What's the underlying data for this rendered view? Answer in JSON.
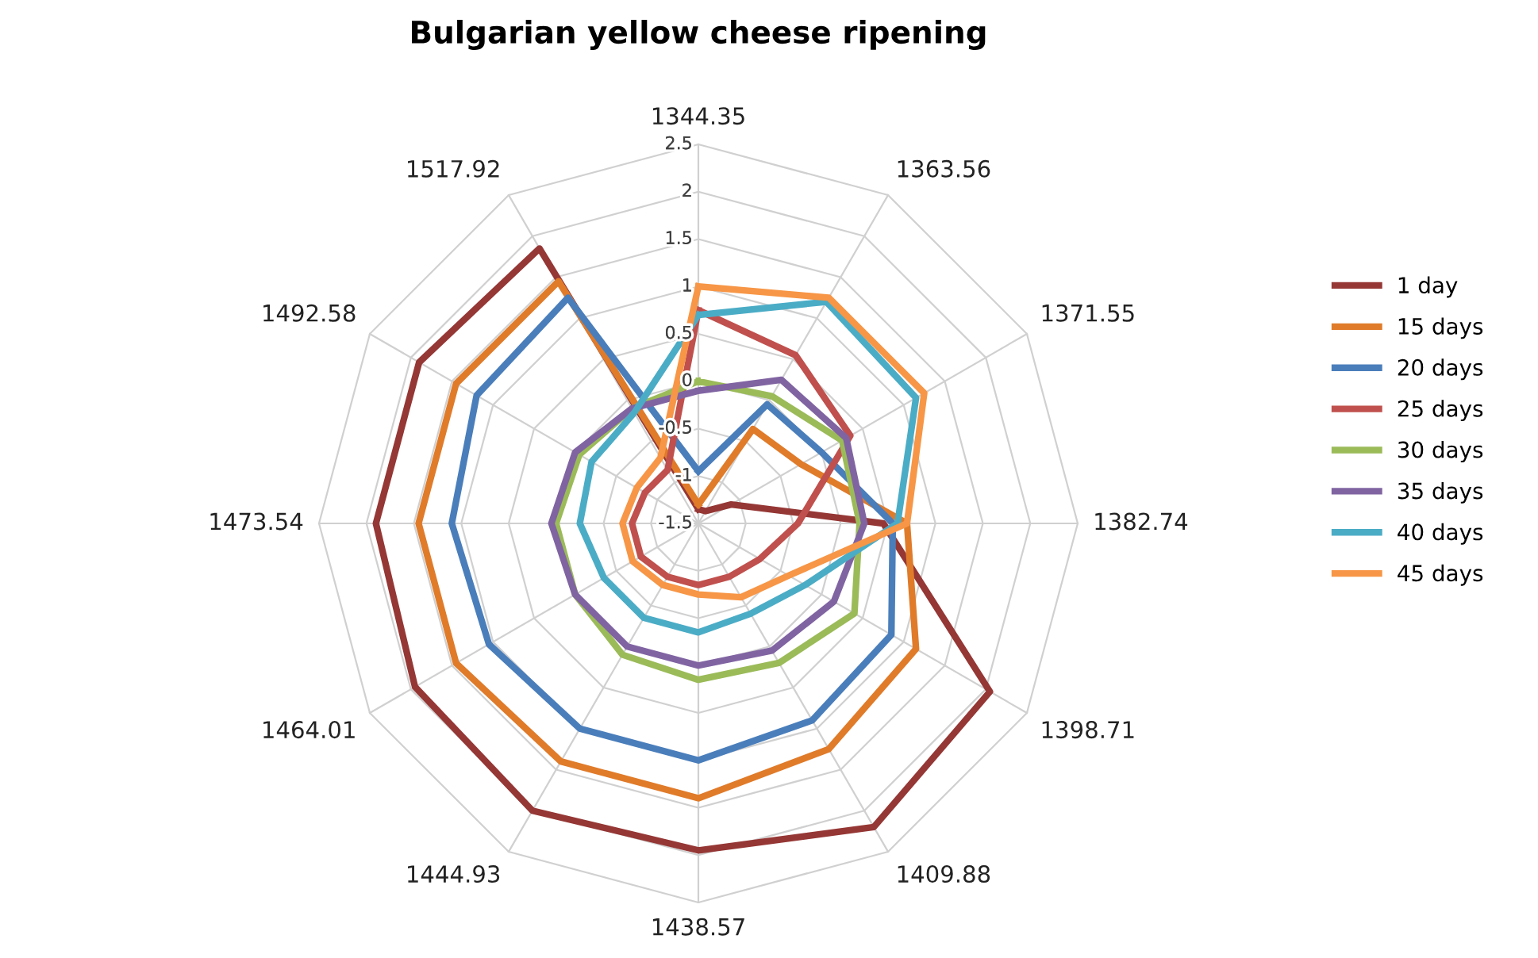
{
  "chart_data": {
    "type": "radar",
    "title": "Bulgarian yellow cheese ripening",
    "categories": [
      "1344.35",
      "1363.56",
      "1371.55",
      "1382.74",
      "1398.71",
      "1409.88",
      "1438.57",
      "1444.93",
      "1464.01",
      "1473.54",
      "1492.58",
      "1517.92"
    ],
    "ylim": [
      -1.5,
      2.5
    ],
    "yticks": [
      -1.5,
      -1,
      -0.5,
      0,
      0.5,
      1,
      1.5,
      2,
      2.5
    ],
    "grid": true,
    "legend": "right",
    "series": [
      {
        "name": "1 day",
        "color": "#953735",
        "values": [
          -1.35,
          -1.35,
          -1.1,
          0.45,
          2.05,
          2.2,
          1.95,
          2.0,
          1.95,
          1.9,
          1.9,
          1.85
        ]
      },
      {
        "name": "15 days",
        "color": "#e07b2a",
        "values": [
          -1.3,
          -0.35,
          -0.25,
          0.7,
          1.15,
          1.25,
          1.4,
          1.4,
          1.45,
          1.45,
          1.45,
          1.45
        ]
      },
      {
        "name": "20 days",
        "color": "#4a7ebb",
        "values": [
          -0.95,
          -0.05,
          0,
          0.55,
          0.85,
          0.9,
          1.0,
          1.0,
          1.05,
          1.1,
          1.2,
          1.25
        ]
      },
      {
        "name": "25 days",
        "color": "#c0504d",
        "values": [
          0.75,
          0.55,
          0.35,
          -0.45,
          -0.75,
          -0.85,
          -0.85,
          -0.85,
          -0.8,
          -0.8,
          -0.85,
          -0.85
        ]
      },
      {
        "name": "30 days",
        "color": "#9bbb59",
        "values": [
          0,
          0.05,
          0.25,
          0.2,
          0.4,
          0.2,
          0.15,
          0.1,
          0,
          0,
          -0.05,
          -0.1
        ]
      },
      {
        "name": "35 days",
        "color": "#8064a2",
        "values": [
          -0.1,
          0.25,
          0.3,
          0.25,
          0.15,
          0.05,
          0,
          0,
          0,
          0.05,
          0,
          -0.1
        ]
      },
      {
        "name": "40 days",
        "color": "#4bacc6",
        "values": [
          0.7,
          1.2,
          1.15,
          0.6,
          -0.2,
          -0.4,
          -0.35,
          -0.35,
          -0.35,
          -0.25,
          -0.2,
          -0.15
        ]
      },
      {
        "name": "45 days",
        "color": "#f79646",
        "values": [
          1.0,
          1.25,
          1.25,
          0.7,
          -0.4,
          -0.6,
          -0.75,
          -0.75,
          -0.7,
          -0.7,
          -0.75,
          -0.7
        ]
      }
    ]
  }
}
